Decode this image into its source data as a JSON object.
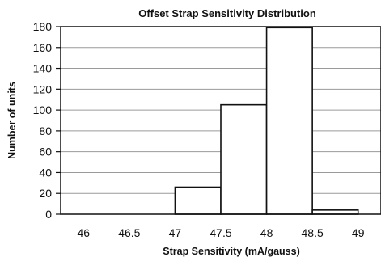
{
  "chart_data": {
    "type": "bar",
    "title": "Offset Strap Sensitivity Distribution",
    "xlabel": "Strap Sensitivity  (mA/gauss)",
    "ylabel": "Number of units",
    "x_ticks": [
      "46",
      "46.5",
      "47",
      "47.5",
      "48",
      "48.5",
      "49"
    ],
    "y_ticks": [
      "0",
      "20",
      "40",
      "60",
      "80",
      "100",
      "120",
      "140",
      "160",
      "180"
    ],
    "xlim": [
      45.75,
      49.25
    ],
    "ylim": [
      0,
      180
    ],
    "bins": [
      {
        "start": 46.0,
        "end": 46.5,
        "value": 0
      },
      {
        "start": 46.5,
        "end": 47.0,
        "value": 0
      },
      {
        "start": 47.0,
        "end": 47.5,
        "value": 26
      },
      {
        "start": 47.5,
        "end": 48.0,
        "value": 105
      },
      {
        "start": 48.0,
        "end": 48.5,
        "value": 179
      },
      {
        "start": 48.5,
        "end": 49.0,
        "value": 4
      },
      {
        "start": 49.0,
        "end": 49.5,
        "value": 0
      }
    ],
    "grid": true,
    "bar_color": "#ffffff",
    "bar_edge_color": "#111111"
  }
}
